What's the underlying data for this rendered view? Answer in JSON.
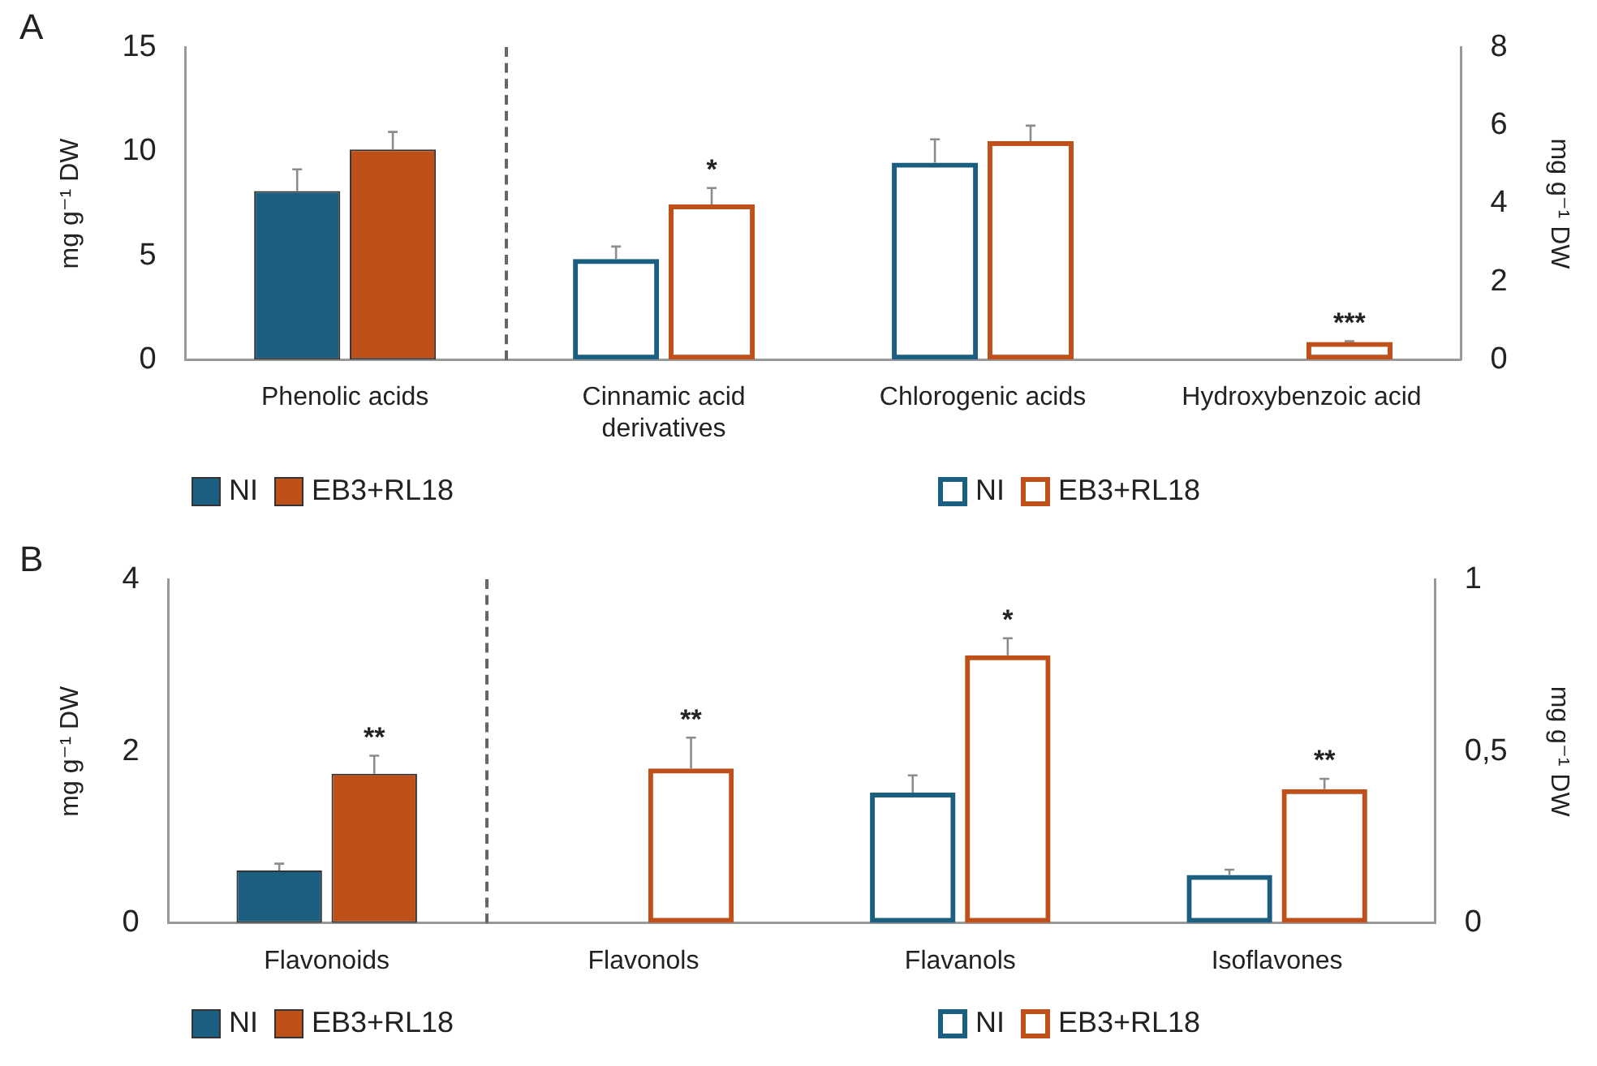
{
  "chart_data": [
    {
      "type": "bar",
      "title": "A",
      "ylabel": "mg g⁻¹ DW",
      "y2label": "mg g⁻¹ DW",
      "categories": [
        "Phenolic acids",
        "Cinnamic acid derivatives",
        "Chlorogenic acids",
        "Hydroxybenzoic acid"
      ],
      "series": [
        {
          "name": "NI",
          "color": "#1a5e80",
          "values": [
            8.1,
            null,
            null,
            null
          ],
          "errors": [
            [
              8.1,
              9.15
            ],
            null,
            null,
            null
          ]
        },
        {
          "name": "EB3+RL18",
          "color": "#c0501a",
          "values": [
            10.1,
            null,
            null,
            null
          ],
          "errors": [
            [
              10.1,
              10.95
            ],
            null,
            null,
            null
          ]
        },
        {
          "name": "NI",
          "color": "#1a5e80",
          "axis": "y2",
          "values": [
            null,
            2.58,
            5.05,
            null
          ],
          "errors": [
            null,
            [
              2.58,
              2.9
            ],
            [
              5.05,
              5.65
            ],
            null
          ]
        },
        {
          "name": "EB3+RL18",
          "color": "#c0501a",
          "axis": "y2",
          "values": [
            null,
            3.98,
            5.6,
            0.45
          ],
          "errors": [
            null,
            [
              3.98,
              4.4
            ],
            [
              5.6,
              6.0
            ],
            [
              0.45,
              0.47
            ]
          ],
          "value_labels": [
            null,
            "*",
            null,
            "***"
          ]
        }
      ],
      "ylim": [
        0,
        15
      ],
      "yticks": [
        0,
        5,
        10,
        15
      ],
      "y2lim": [
        0,
        8
      ],
      "y2ticks": [
        0,
        2,
        4,
        6,
        8
      ],
      "grid": false,
      "legend": "bottom"
    },
    {
      "type": "bar",
      "title": "B",
      "ylabel": "mg g⁻¹ DW",
      "y2label": "mg g⁻¹ DW",
      "categories": [
        "Flavonoids",
        "Flavonols",
        "Flavanols",
        "Isoflavones"
      ],
      "series": [
        {
          "name": "NI",
          "color": "#1a5e80",
          "values": [
            0.61,
            null,
            null,
            null
          ],
          "errors": [
            [
              0.61,
              0.69
            ],
            null,
            null,
            null
          ]
        },
        {
          "name": "EB3+RL18",
          "color": "#c0501a",
          "values": [
            1.74,
            null,
            null,
            null
          ],
          "errors": [
            [
              1.74,
              1.95
            ],
            null,
            null,
            null
          ],
          "value_labels": [
            "**",
            null,
            null,
            null
          ]
        },
        {
          "name": "NI",
          "color": "#1a5e80",
          "axis": "y2",
          "values": [
            null,
            null,
            0.38,
            0.14
          ],
          "errors": [
            null,
            null,
            [
              0.38,
              0.43
            ],
            [
              0.14,
              0.155
            ]
          ]
        },
        {
          "name": "EB3+RL18",
          "color": "#c0501a",
          "axis": "y2",
          "values": [
            null,
            0.45,
            0.78,
            0.39
          ],
          "errors": [
            null,
            [
              0.45,
              0.54
            ],
            [
              0.78,
              0.83
            ],
            [
              0.39,
              0.42
            ]
          ],
          "value_labels": [
            null,
            "**",
            "*",
            "**"
          ]
        }
      ],
      "ylim": [
        0,
        4
      ],
      "yticks": [
        0,
        2,
        4
      ],
      "y2lim": [
        0,
        1
      ],
      "y2ticks": [
        0,
        {
          "value": 0.5,
          "label": "0,5"
        },
        1
      ],
      "grid": false,
      "legend": "bottom"
    }
  ]
}
